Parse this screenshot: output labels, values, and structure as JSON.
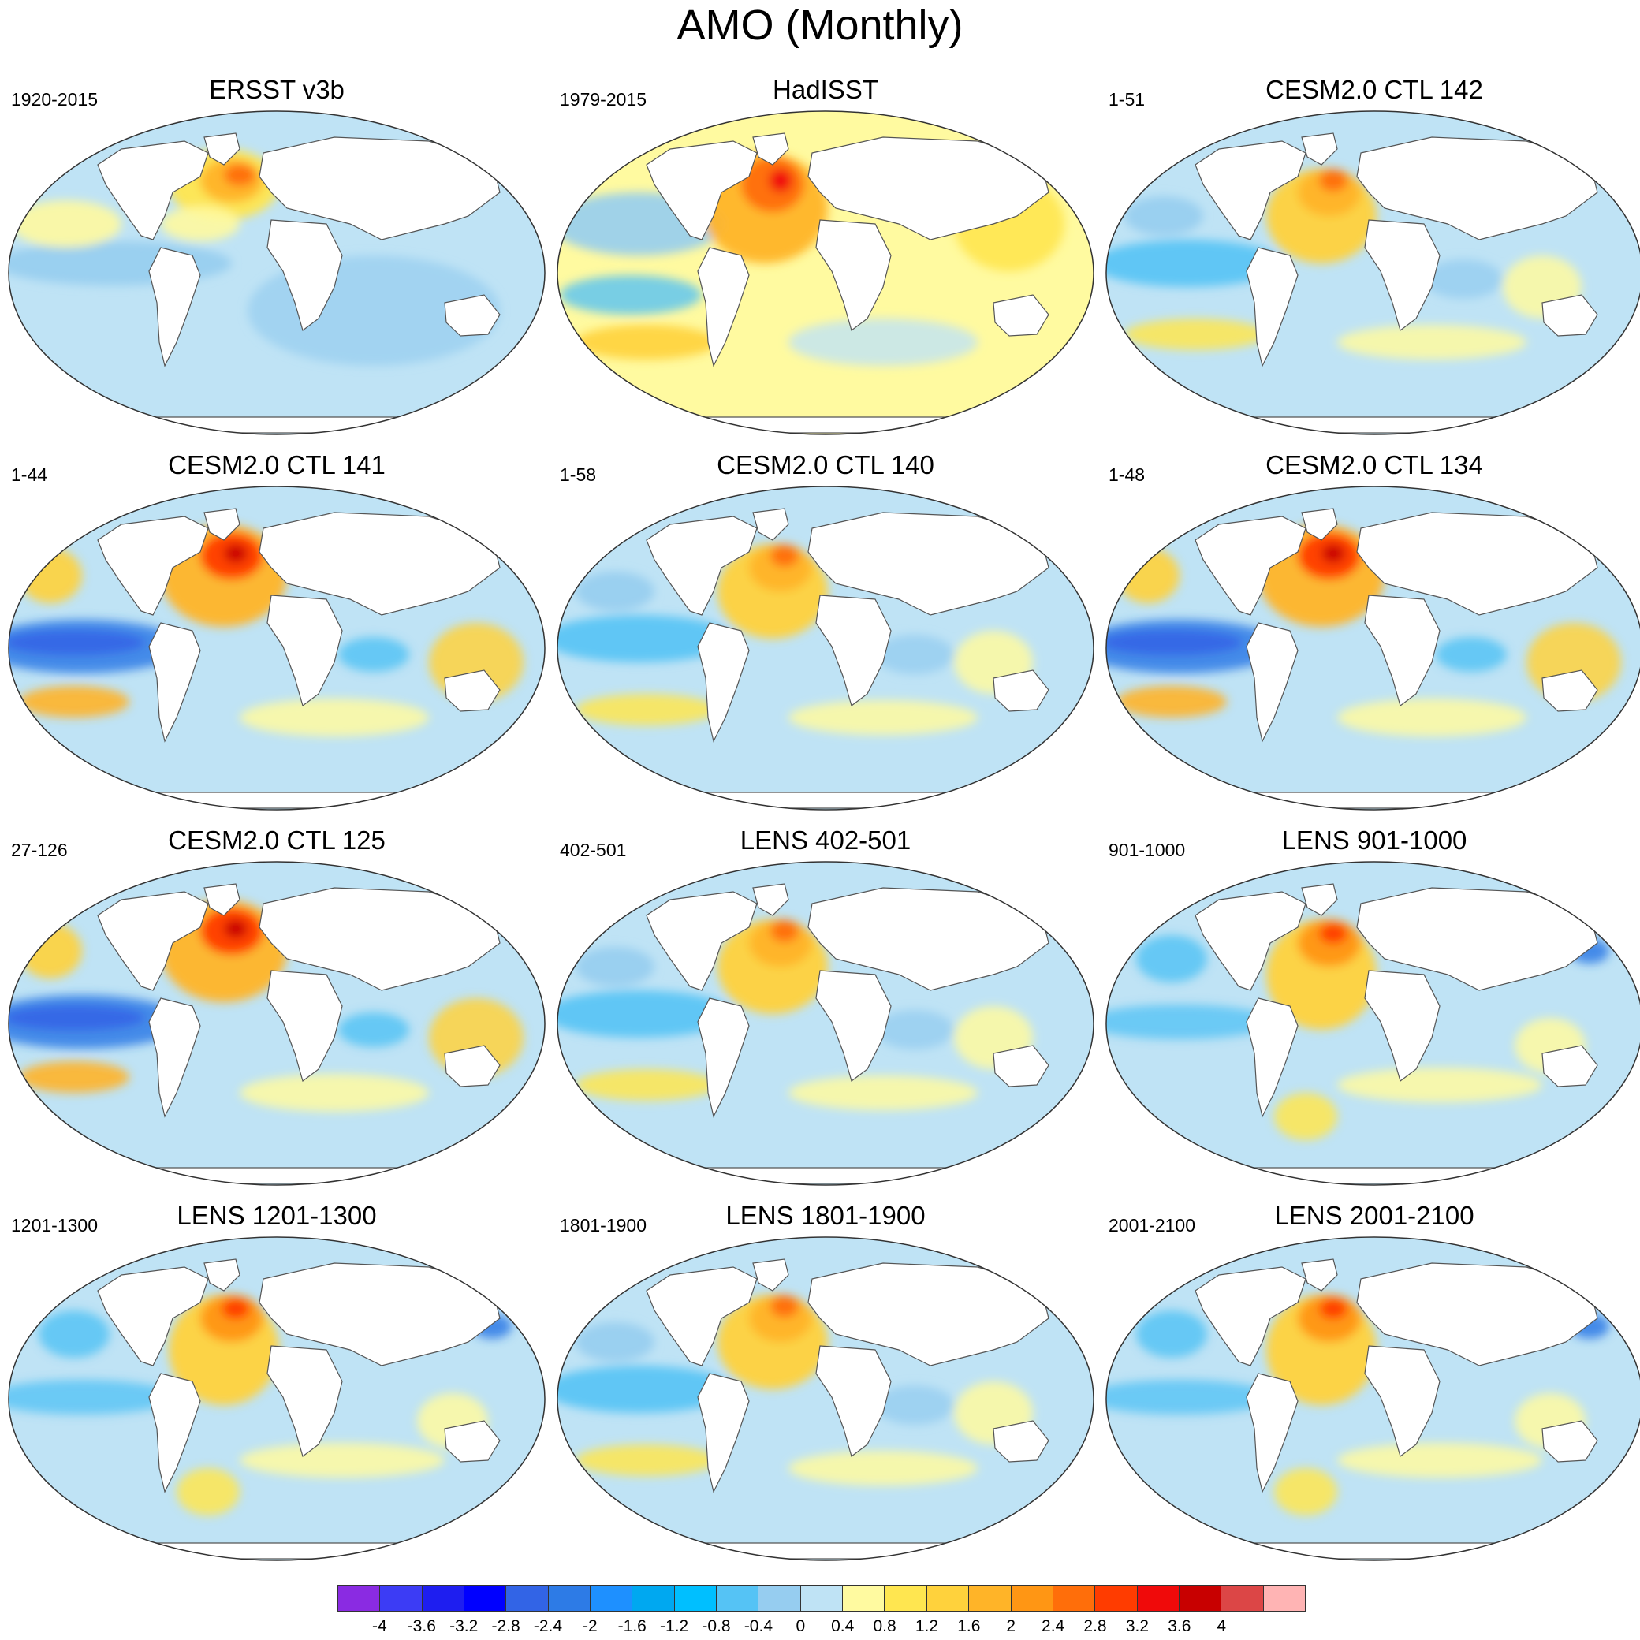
{
  "title": "AMO (Monthly)",
  "panels": [
    {
      "title": "ERSST v3b",
      "period": "1920-2015",
      "palette": "cool"
    },
    {
      "title": "HadISST",
      "period": "1979-2015",
      "palette": "warm"
    },
    {
      "title": "CESM2.0 CTL 142",
      "period": "1-51",
      "palette": "mixed"
    },
    {
      "title": "CESM2.0 CTL 141",
      "period": "1-44",
      "palette": "strong"
    },
    {
      "title": "CESM2.0 CTL 140",
      "period": "1-58",
      "palette": "mixed"
    },
    {
      "title": "CESM2.0 CTL 134",
      "period": "1-48",
      "palette": "strong"
    },
    {
      "title": "CESM2.0 CTL 125",
      "period": "27-126",
      "palette": "strong"
    },
    {
      "title": "LENS 402-501",
      "period": "402-501",
      "palette": "mixed"
    },
    {
      "title": "LENS 901-1000",
      "period": "901-1000",
      "palette": "mild"
    },
    {
      "title": "LENS 1201-1300",
      "period": "1201-1300",
      "palette": "mild"
    },
    {
      "title": "LENS 1801-1900",
      "period": "1801-1900",
      "palette": "mixed"
    },
    {
      "title": "LENS 2001-2100",
      "period": "2001-2100",
      "palette": "mild"
    }
  ],
  "colorbar": {
    "colors": [
      "#8a2be2",
      "#3c3cf5",
      "#1e1ef0",
      "#0000ff",
      "#3264e6",
      "#2d7be6",
      "#1e90ff",
      "#00a8f0",
      "#00bfff",
      "#55c3f5",
      "#96cdf0",
      "#bfe3f5",
      "#fffaa0",
      "#ffe650",
      "#ffd23c",
      "#ffb428",
      "#ff9614",
      "#ff6e0a",
      "#ff3c00",
      "#f00a0a",
      "#c80000",
      "#dc4646",
      "#ffb4b4"
    ],
    "labels": [
      "-4",
      "-3.6",
      "-3.2",
      "-2.8",
      "-2.4",
      "-2",
      "-1.6",
      "-1.2",
      "-0.8",
      "-0.4",
      "0",
      "0.4",
      "0.8",
      "1.2",
      "1.6",
      "2",
      "2.4",
      "2.8",
      "3.2",
      "3.6",
      "4"
    ]
  }
}
